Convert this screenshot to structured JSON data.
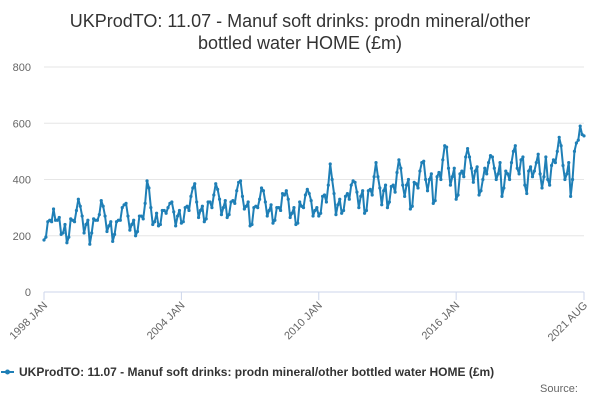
{
  "chart_data": {
    "type": "line",
    "title_lines": [
      "UKProdTO: 11.07 - Manuf soft drinks: prodn mineral/other",
      "bottled water HOME (£m)"
    ],
    "x_start": "1998 JAN",
    "x_end": "2021 AUG",
    "x_tick_labels": [
      "1998 JAN",
      "2004 JAN",
      "2010 JAN",
      "2016 JAN",
      "2021 AUG"
    ],
    "ylim": [
      0,
      800
    ],
    "y_ticks": [
      0,
      200,
      400,
      600,
      800
    ],
    "grid": true,
    "legend_position": "bottom-left",
    "series": [
      {
        "name": "UKProdTO: 11.07 - Manuf soft drinks: prodn mineral/other bottled water HOME (£m)",
        "color": "#1f7fb6",
        "values": [
          185,
          195,
          250,
          255,
          250,
          295,
          255,
          255,
          265,
          205,
          210,
          240,
          175,
          195,
          260,
          255,
          250,
          290,
          330,
          305,
          270,
          210,
          240,
          255,
          170,
          210,
          260,
          255,
          255,
          275,
          325,
          305,
          270,
          215,
          235,
          250,
          180,
          205,
          250,
          255,
          255,
          300,
          310,
          315,
          270,
          220,
          240,
          255,
          200,
          215,
          270,
          270,
          260,
          315,
          395,
          370,
          300,
          240,
          250,
          280,
          235,
          240,
          290,
          290,
          280,
          300,
          315,
          320,
          285,
          235,
          270,
          290,
          245,
          250,
          300,
          305,
          290,
          340,
          370,
          385,
          320,
          265,
          290,
          305,
          250,
          260,
          320,
          320,
          300,
          345,
          385,
          365,
          330,
          275,
          300,
          325,
          265,
          275,
          320,
          325,
          315,
          360,
          390,
          395,
          340,
          295,
          305,
          320,
          235,
          240,
          300,
          305,
          300,
          330,
          370,
          360,
          320,
          270,
          290,
          310,
          245,
          255,
          300,
          300,
          290,
          350,
          345,
          360,
          330,
          265,
          280,
          300,
          240,
          245,
          320,
          305,
          300,
          345,
          365,
          350,
          325,
          270,
          290,
          300,
          270,
          280,
          340,
          345,
          320,
          380,
          455,
          400,
          350,
          275,
          310,
          330,
          280,
          290,
          340,
          350,
          330,
          380,
          395,
          390,
          355,
          300,
          340,
          360,
          280,
          290,
          360,
          365,
          345,
          410,
          460,
          410,
          370,
          310,
          360,
          380,
          300,
          320,
          375,
          380,
          355,
          425,
          470,
          440,
          380,
          340,
          380,
          400,
          295,
          305,
          390,
          385,
          370,
          430,
          460,
          465,
          400,
          360,
          400,
          420,
          315,
          325,
          410,
          425,
          400,
          470,
          520,
          515,
          440,
          380,
          410,
          440,
          330,
          345,
          420,
          430,
          410,
          480,
          510,
          480,
          440,
          390,
          430,
          445,
          345,
          360,
          400,
          440,
          420,
          460,
          485,
          480,
          440,
          400,
          420,
          460,
          340,
          370,
          430,
          420,
          400,
          460,
          500,
          520,
          440,
          420,
          470,
          480,
          380,
          350,
          430,
          445,
          410,
          430,
          460,
          490,
          420,
          370,
          410,
          480,
          400,
          380,
          450,
          470,
          460,
          500,
          550,
          520,
          450,
          400,
          420,
          460,
          340,
          400,
          500,
          530,
          540,
          590,
          560,
          555
        ]
      }
    ]
  },
  "credit": "Source:"
}
